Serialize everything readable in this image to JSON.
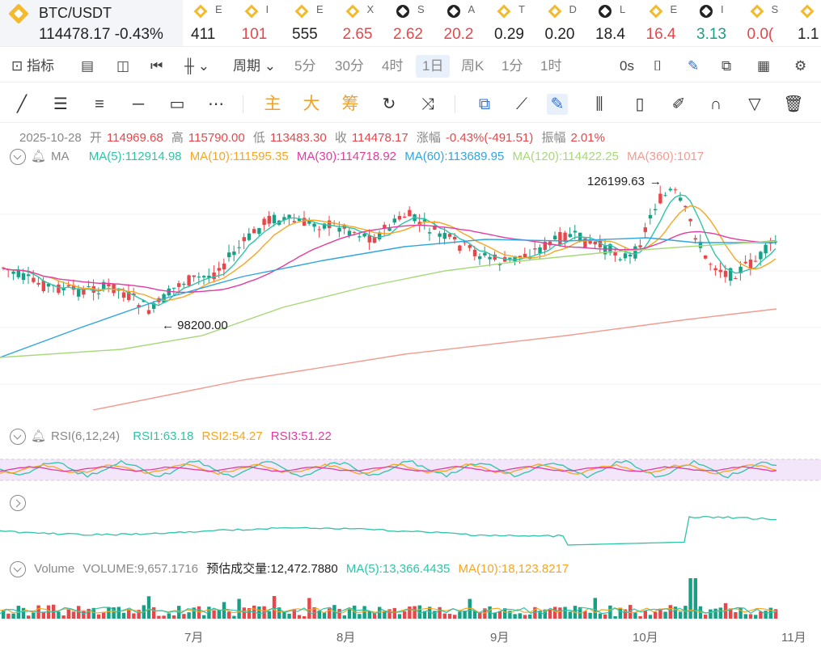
{
  "symbol": {
    "pair": "BTC/USDT",
    "price": "114478.17",
    "change": "-0.43%"
  },
  "ticker": [
    {
      "icon": "binance-icon",
      "name": "E",
      "value": "411",
      "color": "#222"
    },
    {
      "icon": "binance-icon",
      "name": "I",
      "value": "101",
      "color": "#e5474b"
    },
    {
      "icon": "binance-icon",
      "name": "E",
      "value": "555",
      "color": "#222"
    },
    {
      "icon": "binance-icon",
      "name": "X",
      "value": "2.65",
      "color": "#e5474b"
    },
    {
      "icon": "okx-icon",
      "name": "S",
      "value": "2.62",
      "color": "#e5474b"
    },
    {
      "icon": "okx-icon",
      "name": "A",
      "value": "20.2",
      "color": "#e5474b"
    },
    {
      "icon": "binance-icon",
      "name": "T",
      "value": "0.29",
      "color": "#222"
    },
    {
      "icon": "binance-icon",
      "name": "D",
      "value": "0.20",
      "color": "#222"
    },
    {
      "icon": "okx-icon",
      "name": "L",
      "value": "18.4",
      "color": "#222"
    },
    {
      "icon": "binance-icon",
      "name": "E",
      "value": "16.4",
      "color": "#e5474b"
    },
    {
      "icon": "okx-icon",
      "name": "I",
      "value": "3.13",
      "color": "#16a085"
    },
    {
      "icon": "binance-icon",
      "name": "S",
      "value": "0.0(",
      "color": "#e5474b"
    },
    {
      "icon": "binance-icon",
      "name": "",
      "value": "1.1",
      "color": "#222"
    }
  ],
  "toolbar": {
    "indicators": "指标",
    "period": "周期",
    "intervals": [
      "5分",
      "30分",
      "4时",
      "1日",
      "周K",
      "1分",
      "1时"
    ],
    "active_interval": "1日",
    "seconds": "0s"
  },
  "drawing_tools": {
    "zhu": "主",
    "da": "大",
    "chou": "筹"
  },
  "ohlc": {
    "date": "2025-10-28",
    "open_label": "开",
    "open": "114969.68",
    "high_label": "高",
    "high": "115790.00",
    "low_label": "低",
    "low": "113483.30",
    "close_label": "收",
    "close": "114478.17",
    "chg_label": "涨幅",
    "chg": "-0.43%(-491.51)",
    "amp_label": "振幅",
    "amp": "2.01%"
  },
  "ma_legend": {
    "name": "MA",
    "ma5": "MA(5):112914.98",
    "ma10": "MA(10):111595.35",
    "ma30": "MA(30):114718.92",
    "ma60": "MA(60):113689.95",
    "ma120": "MA(120):114422.25",
    "ma360": "MA(360):1017"
  },
  "colors": {
    "ma5": "#2ec4a8",
    "ma10": "#f5a623",
    "ma30": "#e23ca0",
    "ma60": "#2fa6e0",
    "ma120": "#a8d87a",
    "ma360": "#f29b91",
    "up": "#16a085",
    "down": "#e5474b"
  },
  "annotations": {
    "high": "126199.63",
    "low": "98200.00"
  },
  "rsi_legend": {
    "name": "RSI(6,12,24)",
    "rsi1": "RSI1:63.18",
    "rsi2": "RSI2:54.27",
    "rsi3": "RSI3:51.22"
  },
  "volume_legend": {
    "name": "Volume",
    "volume": "VOLUME:9,657.1716",
    "est": "预估成交量:12,472.7880",
    "ma5": "MA(5):13,366.4435",
    "ma10": "MA(10):18,123.8217"
  },
  "x_axis": [
    "7月",
    "8月",
    "9月",
    "10月",
    "11月"
  ]
}
